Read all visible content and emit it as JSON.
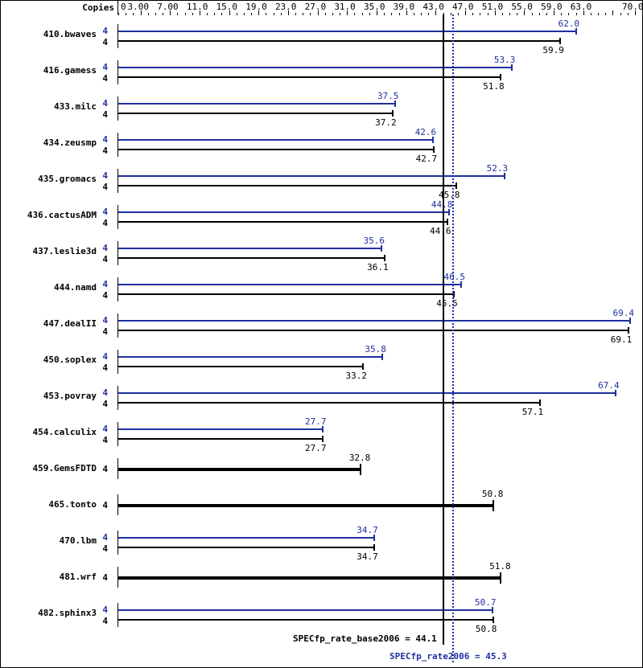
{
  "header": {
    "copies_label": "Copies"
  },
  "colors": {
    "peak": "#1f2fa0",
    "base": "#000000",
    "axis": "#000000"
  },
  "chart_data": {
    "type": "bar",
    "orientation": "horizontal",
    "title": "",
    "xlabel": "",
    "ylabel": "",
    "xlim": [
      0,
      70.0
    ],
    "x_tick_labels": [
      "0",
      "3.00",
      "7.00",
      "11.0",
      "15.0",
      "19.0",
      "23.0",
      "27.0",
      "31.0",
      "35.0",
      "39.0",
      "43.0",
      "47.0",
      "51.0",
      "55.0",
      "59.0",
      "63.0",
      "70.0"
    ],
    "x_tick_values": [
      0,
      3,
      7,
      11,
      15,
      19,
      23,
      27,
      31,
      35,
      39,
      43,
      47,
      51,
      55,
      59,
      63,
      70
    ],
    "legend": [
      "peak (blue)",
      "base (black)"
    ],
    "categories": [
      "410.bwaves",
      "416.gamess",
      "433.milc",
      "434.zeusmp",
      "435.gromacs",
      "436.cactusADM",
      "437.leslie3d",
      "444.namd",
      "447.dealII",
      "450.soplex",
      "453.povray",
      "454.calculix",
      "459.GemsFDTD",
      "465.tonto",
      "470.lbm",
      "481.wrf",
      "482.sphinx3"
    ],
    "series": [
      {
        "name": "peak",
        "copies": [
          4,
          4,
          4,
          4,
          4,
          4,
          4,
          4,
          4,
          4,
          4,
          4,
          null,
          null,
          4,
          null,
          4
        ],
        "values": [
          62.0,
          53.3,
          37.5,
          42.6,
          52.3,
          44.8,
          35.6,
          46.5,
          69.4,
          35.8,
          67.4,
          27.7,
          null,
          null,
          34.7,
          null,
          50.7
        ]
      },
      {
        "name": "base",
        "copies": [
          4,
          4,
          4,
          4,
          4,
          4,
          4,
          4,
          4,
          4,
          4,
          4,
          4,
          4,
          4,
          4,
          4
        ],
        "values": [
          59.9,
          51.8,
          37.2,
          42.7,
          45.8,
          44.6,
          36.1,
          45.5,
          69.1,
          33.2,
          57.1,
          27.7,
          32.8,
          50.8,
          34.7,
          51.8,
          50.8
        ]
      }
    ],
    "annotations": [
      {
        "text": "SPECfp_rate_base2006 = 44.1",
        "value": 44.1,
        "style": "solid black line"
      },
      {
        "text": "SPECfp_rate2006 = 45.3",
        "value": 45.3,
        "style": "dotted blue line"
      }
    ]
  },
  "summary": {
    "base_label": "SPECfp_rate_base2006 = 44.1",
    "peak_label": "SPECfp_rate2006 = 45.3"
  }
}
